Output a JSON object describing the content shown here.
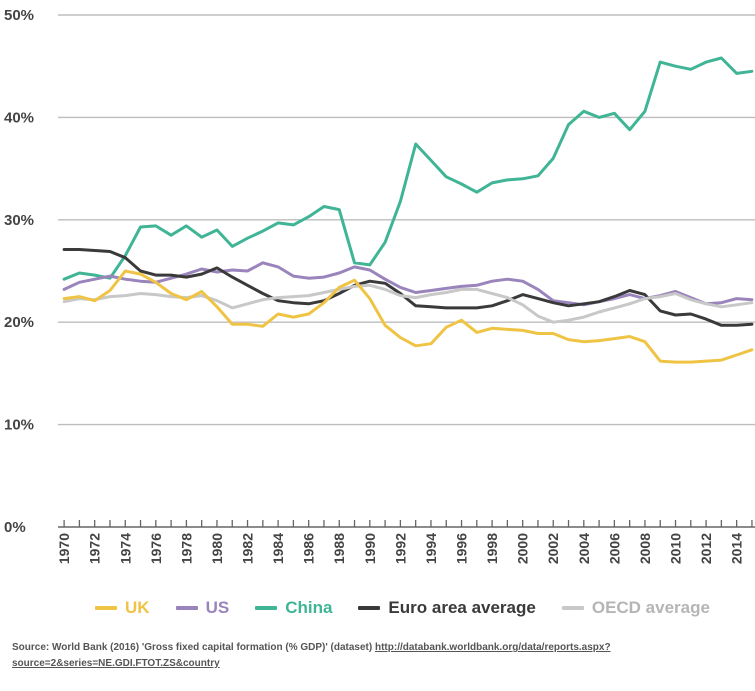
{
  "chart_data": {
    "type": "line",
    "title": "",
    "xlabel": "",
    "ylabel": "",
    "x": [
      1970,
      1971,
      1972,
      1973,
      1974,
      1975,
      1976,
      1977,
      1978,
      1979,
      1980,
      1981,
      1982,
      1983,
      1984,
      1985,
      1986,
      1987,
      1988,
      1989,
      1990,
      1991,
      1992,
      1993,
      1994,
      1995,
      1996,
      1997,
      1998,
      1999,
      2000,
      2001,
      2002,
      2003,
      2004,
      2005,
      2006,
      2007,
      2008,
      2009,
      2010,
      2011,
      2012,
      2013,
      2014,
      2015
    ],
    "xlim": [
      1969.6,
      2015.2
    ],
    "ylim": [
      0,
      50
    ],
    "yticks": [
      0,
      10,
      20,
      30,
      40,
      50
    ],
    "ytick_labels": [
      "0%",
      "10%",
      "20%",
      "30%",
      "40%",
      "50%"
    ],
    "xtick_labels": [
      "1970",
      "1972",
      "1974",
      "1976",
      "1978",
      "1980",
      "1982",
      "1984",
      "1986",
      "1988",
      "1990",
      "1992",
      "1994",
      "1996",
      "1998",
      "2000",
      "2002",
      "2004",
      "2006",
      "2008",
      "2010",
      "2012",
      "2014"
    ],
    "grid": "horizontal",
    "legend_position": "bottom",
    "series": [
      {
        "name": "China",
        "color": "#3fb596",
        "values": [
          24.2,
          24.8,
          24.6,
          24.3,
          26.5,
          29.3,
          29.4,
          28.5,
          29.4,
          28.3,
          29.0,
          27.4,
          28.2,
          28.9,
          29.7,
          29.5,
          30.3,
          31.3,
          31.0,
          25.8,
          25.6,
          27.8,
          31.8,
          37.4,
          35.8,
          34.2,
          33.5,
          32.7,
          33.6,
          33.9,
          34.0,
          34.3,
          36.0,
          39.3,
          40.6,
          40.0,
          40.4,
          38.8,
          40.6,
          45.4,
          45.0,
          44.7,
          45.4,
          45.8,
          44.3,
          44.5
        ]
      },
      {
        "name": "US",
        "color": "#9a84bc",
        "values": [
          23.2,
          23.9,
          24.2,
          24.5,
          24.2,
          24.0,
          23.9,
          24.3,
          24.7,
          25.2,
          24.9,
          25.1,
          25.0,
          25.8,
          25.4,
          24.5,
          24.3,
          24.4,
          24.8,
          25.4,
          25.1,
          24.2,
          23.4,
          22.9,
          23.1,
          23.3,
          23.5,
          23.6,
          24.0,
          24.2,
          24.0,
          23.2,
          22.1,
          21.9,
          21.7,
          22.0,
          22.3,
          22.7,
          22.3,
          22.6,
          23.0,
          22.4,
          21.8,
          21.9,
          22.3,
          22.2
        ]
      },
      {
        "name": "Euro area average",
        "color": "#3a3a3a",
        "values": [
          27.1,
          27.1,
          27.0,
          26.9,
          26.3,
          25.0,
          24.6,
          24.6,
          24.4,
          24.7,
          25.3,
          24.4,
          23.6,
          22.8,
          22.1,
          21.9,
          21.8,
          22.1,
          22.8,
          23.6,
          24.0,
          23.8,
          22.8,
          21.6,
          21.5,
          21.4,
          21.4,
          21.4,
          21.6,
          22.1,
          22.7,
          22.3,
          21.9,
          21.6,
          21.8,
          22.0,
          22.5,
          23.1,
          22.7,
          21.1,
          20.7,
          20.8,
          20.3,
          19.7,
          19.7,
          19.8
        ]
      },
      {
        "name": "OECD average",
        "color": "#c8c8c8",
        "values": [
          22.0,
          22.3,
          22.2,
          22.5,
          22.6,
          22.8,
          22.7,
          22.5,
          22.4,
          22.6,
          22.1,
          21.4,
          21.8,
          22.2,
          22.4,
          22.5,
          22.6,
          22.9,
          23.2,
          23.5,
          23.6,
          23.2,
          22.6,
          22.4,
          22.7,
          22.9,
          23.2,
          23.2,
          22.8,
          22.4,
          21.7,
          20.6,
          20.0,
          20.2,
          20.5,
          21.0,
          21.4,
          21.8,
          22.3,
          22.5,
          22.8,
          22.2,
          21.8,
          21.5,
          21.7,
          21.9
        ]
      },
      {
        "name": "UK",
        "color": "#efc445",
        "values": [
          22.3,
          22.5,
          22.1,
          23.1,
          25.0,
          24.7,
          23.9,
          22.8,
          22.2,
          23.0,
          21.5,
          19.8,
          19.8,
          19.6,
          20.8,
          20.5,
          20.8,
          21.9,
          23.4,
          24.1,
          22.3,
          19.7,
          18.5,
          17.7,
          17.9,
          19.5,
          20.2,
          19.0,
          19.4,
          19.3,
          19.2,
          18.9,
          18.9,
          18.3,
          18.1,
          18.2,
          18.4,
          18.6,
          18.1,
          16.2,
          16.1,
          16.1,
          16.2,
          16.3,
          16.8,
          17.3
        ]
      }
    ]
  },
  "legend": {
    "items": [
      {
        "name": "UK",
        "color": "#efc445"
      },
      {
        "name": "US",
        "color": "#9a84bc"
      },
      {
        "name": "China",
        "color": "#3fb596"
      },
      {
        "name": "Euro area average",
        "color": "#3a3a3a"
      },
      {
        "name": "OECD average",
        "color": "#c8c8c8"
      }
    ]
  },
  "source": {
    "label": "Source: World Bank (2016) 'Gross fixed capital formation (% GDP)' (dataset) ",
    "link": "http://databank.worldbank.org/data/reports.aspx?source=2&series=NE.GDI.FTOT.ZS&country"
  }
}
